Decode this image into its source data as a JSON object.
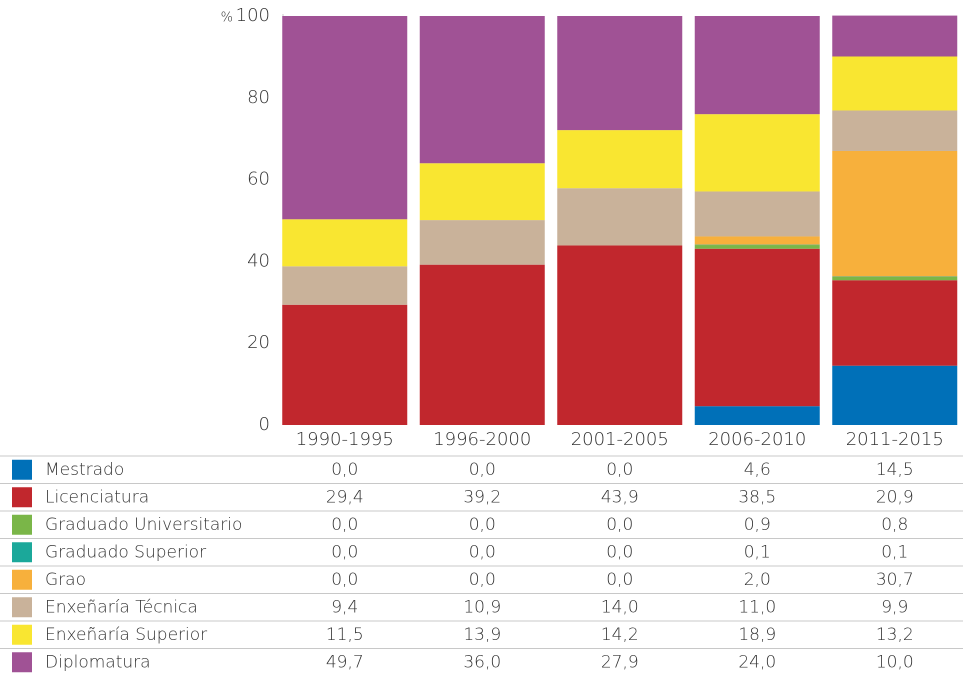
{
  "chart_data": {
    "type": "bar",
    "stacked": true,
    "ylabel": "%",
    "categories": [
      "1990-1995",
      "1996-2000",
      "2001-2005",
      "2006-2010",
      "2011-2015"
    ],
    "ylim": [
      0,
      100
    ],
    "yticks": [
      0,
      20,
      40,
      60,
      80,
      100
    ],
    "grid": false,
    "series": [
      {
        "name": "Mestrado",
        "color": "#0070b8",
        "values": [
          0.0,
          0.0,
          0.0,
          4.6,
          14.5
        ],
        "value_labels": [
          "0,0",
          "0,0",
          "0,0",
          "4,6",
          "14,5"
        ]
      },
      {
        "name": "Licenciatura",
        "color": "#c1272d",
        "values": [
          29.4,
          39.2,
          43.9,
          38.5,
          20.9
        ],
        "value_labels": [
          "29,4",
          "39,2",
          "43,9",
          "38,5",
          "20,9"
        ]
      },
      {
        "name": "Graduado Universitario",
        "color": "#7ab648",
        "values": [
          0.0,
          0.0,
          0.0,
          0.9,
          0.8
        ],
        "value_labels": [
          "0,0",
          "0,0",
          "0,0",
          "0,9",
          "0,8"
        ]
      },
      {
        "name": "Graduado Superior",
        "color": "#1ba89a",
        "values": [
          0.0,
          0.0,
          0.0,
          0.1,
          0.1
        ],
        "value_labels": [
          "0,0",
          "0,0",
          "0,0",
          "0,1",
          "0,1"
        ]
      },
      {
        "name": "Grao",
        "color": "#f7b03c",
        "values": [
          0.0,
          0.0,
          0.0,
          2.0,
          30.7
        ],
        "value_labels": [
          "0,0",
          "0,0",
          "0,0",
          "2,0",
          "30,7"
        ]
      },
      {
        "name": "Enxeñaría Técnica",
        "color": "#c9b29a",
        "values": [
          9.4,
          10.9,
          14.0,
          11.0,
          9.9
        ],
        "value_labels": [
          "9,4",
          "10,9",
          "14,0",
          "11,0",
          "9,9"
        ]
      },
      {
        "name": "Enxeñaría Superior",
        "color": "#f9e631",
        "values": [
          11.5,
          13.9,
          14.2,
          18.9,
          13.2
        ],
        "value_labels": [
          "11,5",
          "13,9",
          "14,2",
          "18,9",
          "13,2"
        ]
      },
      {
        "name": "Diplomatura",
        "color": "#a05295",
        "values": [
          49.7,
          36.0,
          27.9,
          24.0,
          10.0
        ],
        "value_labels": [
          "49,7",
          "36,0",
          "27,9",
          "24,0",
          "10,0"
        ]
      }
    ]
  }
}
